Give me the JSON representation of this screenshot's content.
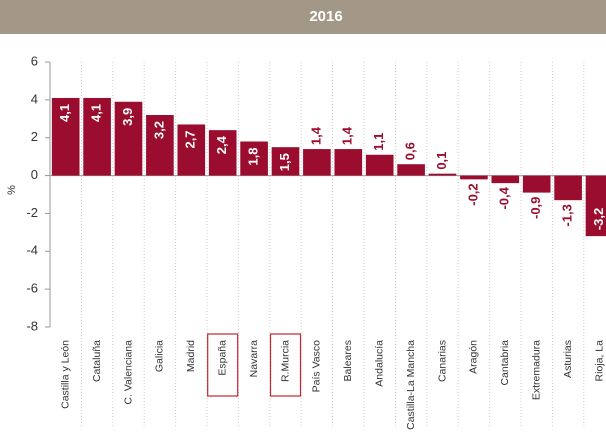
{
  "chart_data": {
    "type": "bar",
    "title": "2016",
    "y_label": "%",
    "categories": [
      "Castilla y León",
      "Cataluña",
      "C. Valenciana",
      "Galicia",
      "Madrid",
      "España",
      "Navarra",
      "R.Murcia",
      "País Vasco",
      "Baleares",
      "Andalucía",
      "Castilla-La Mancha",
      "Canarias",
      "Aragón",
      "Cantabria",
      "Extremadura",
      "Asturias",
      "Rioja, La"
    ],
    "values": [
      4.1,
      4.1,
      3.9,
      3.2,
      2.7,
      2.4,
      1.8,
      1.5,
      1.4,
      1.4,
      1.1,
      0.6,
      0.1,
      -0.2,
      -0.4,
      -0.9,
      -1.3,
      -3.2
    ],
    "value_labels": [
      "4,1",
      "4,1",
      "3,9",
      "3,2",
      "2,7",
      "2,4",
      "1,8",
      "1,5",
      "1,4",
      "1,4",
      "1,1",
      "0,6",
      "0,1",
      "-0,2",
      "-0,4",
      "-0,9",
      "-1,3",
      "-3,2"
    ],
    "color": "#9b0d2e",
    "ylim": [
      -8,
      6
    ],
    "yticks": [
      -8,
      -6,
      -4,
      -2,
      0,
      2,
      4,
      6
    ],
    "highlighted": [
      5,
      7
    ]
  }
}
